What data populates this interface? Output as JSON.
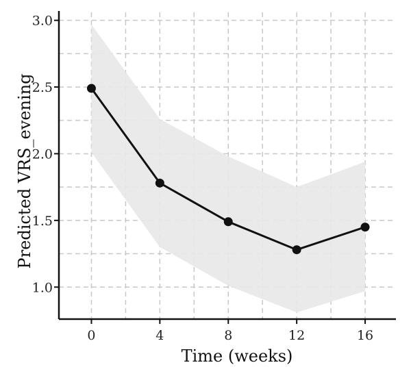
{
  "chart_data": {
    "type": "line",
    "xlabel": "Time (weeks)",
    "ylabel": "Predicted VRS_evening",
    "x": [
      0,
      4,
      8,
      12,
      16
    ],
    "xticks": [
      "0",
      "4",
      "8",
      "12",
      "16"
    ],
    "xlim": [
      -1.9,
      17.8
    ],
    "yticks": [
      "1.0",
      "1.5",
      "2.0",
      "2.5",
      "3.0"
    ],
    "ylim": [
      0.76,
      3.06
    ],
    "grid": true,
    "series": [
      {
        "values": [
          2.49,
          1.78,
          1.49,
          1.28,
          1.45
        ],
        "ci_upper": [
          2.97,
          2.26,
          1.98,
          1.75,
          1.94
        ],
        "ci_lower": [
          2.01,
          1.3,
          1.01,
          0.81,
          0.97
        ],
        "color": "#111111",
        "band_color": "#e8e8e8"
      }
    ]
  }
}
